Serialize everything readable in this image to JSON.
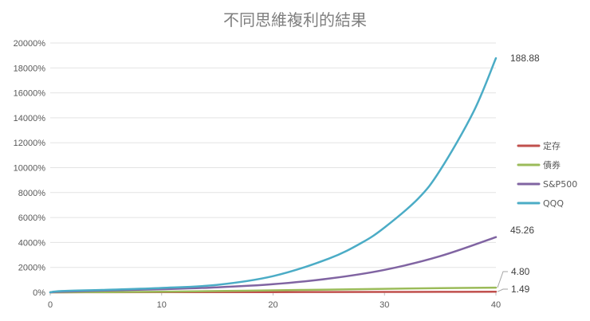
{
  "chart_data": {
    "type": "line",
    "title": "不同思維複利的結果",
    "xlabel": "",
    "ylabel": "",
    "xlim": [
      0,
      40
    ],
    "ylim": [
      0,
      20000
    ],
    "x_ticks": [
      0,
      10,
      20,
      30,
      40
    ],
    "y_ticks": [
      "0%",
      "2000%",
      "4000%",
      "6000%",
      "8000%",
      "10000%",
      "12000%",
      "14000%",
      "16000%",
      "18000%",
      "20000%"
    ],
    "y_tick_values": [
      0,
      2000,
      4000,
      6000,
      8000,
      10000,
      12000,
      14000,
      16000,
      18000,
      20000
    ],
    "grid": "horizontal",
    "legend_position": "right",
    "series": [
      {
        "name": "定存",
        "color": "#c0504d",
        "end_label": "1.49",
        "end_value": 49,
        "x": [
          0,
          5,
          10,
          15,
          20,
          25,
          30,
          35,
          40
        ],
        "y": [
          0,
          5,
          10,
          16,
          22,
          28,
          34,
          41,
          49
        ]
      },
      {
        "name": "債券",
        "color": "#9bbb59",
        "end_label": "4.80",
        "end_value": 380,
        "x": [
          0,
          5,
          10,
          15,
          20,
          25,
          30,
          35,
          40
        ],
        "y": [
          0,
          20,
          50,
          100,
          160,
          220,
          280,
          330,
          380
        ]
      },
      {
        "name": "S&P500",
        "color": "#8064a2",
        "end_label": "45.26",
        "end_value": 4426,
        "x": [
          0,
          1,
          5,
          10,
          15,
          20,
          25,
          30,
          35,
          40
        ],
        "y": [
          0,
          50,
          150,
          250,
          400,
          650,
          1100,
          1800,
          2900,
          4426
        ]
      },
      {
        "name": "QQQ",
        "color": "#4bacc6",
        "end_label": "188.88",
        "end_value": 18788,
        "x": [
          0,
          1,
          5,
          10,
          15,
          20,
          25,
          28,
          30,
          33,
          35,
          38,
          40
        ],
        "y": [
          0,
          100,
          200,
          350,
          600,
          1300,
          2700,
          4000,
          5200,
          7500,
          9800,
          14500,
          18788
        ]
      }
    ]
  }
}
